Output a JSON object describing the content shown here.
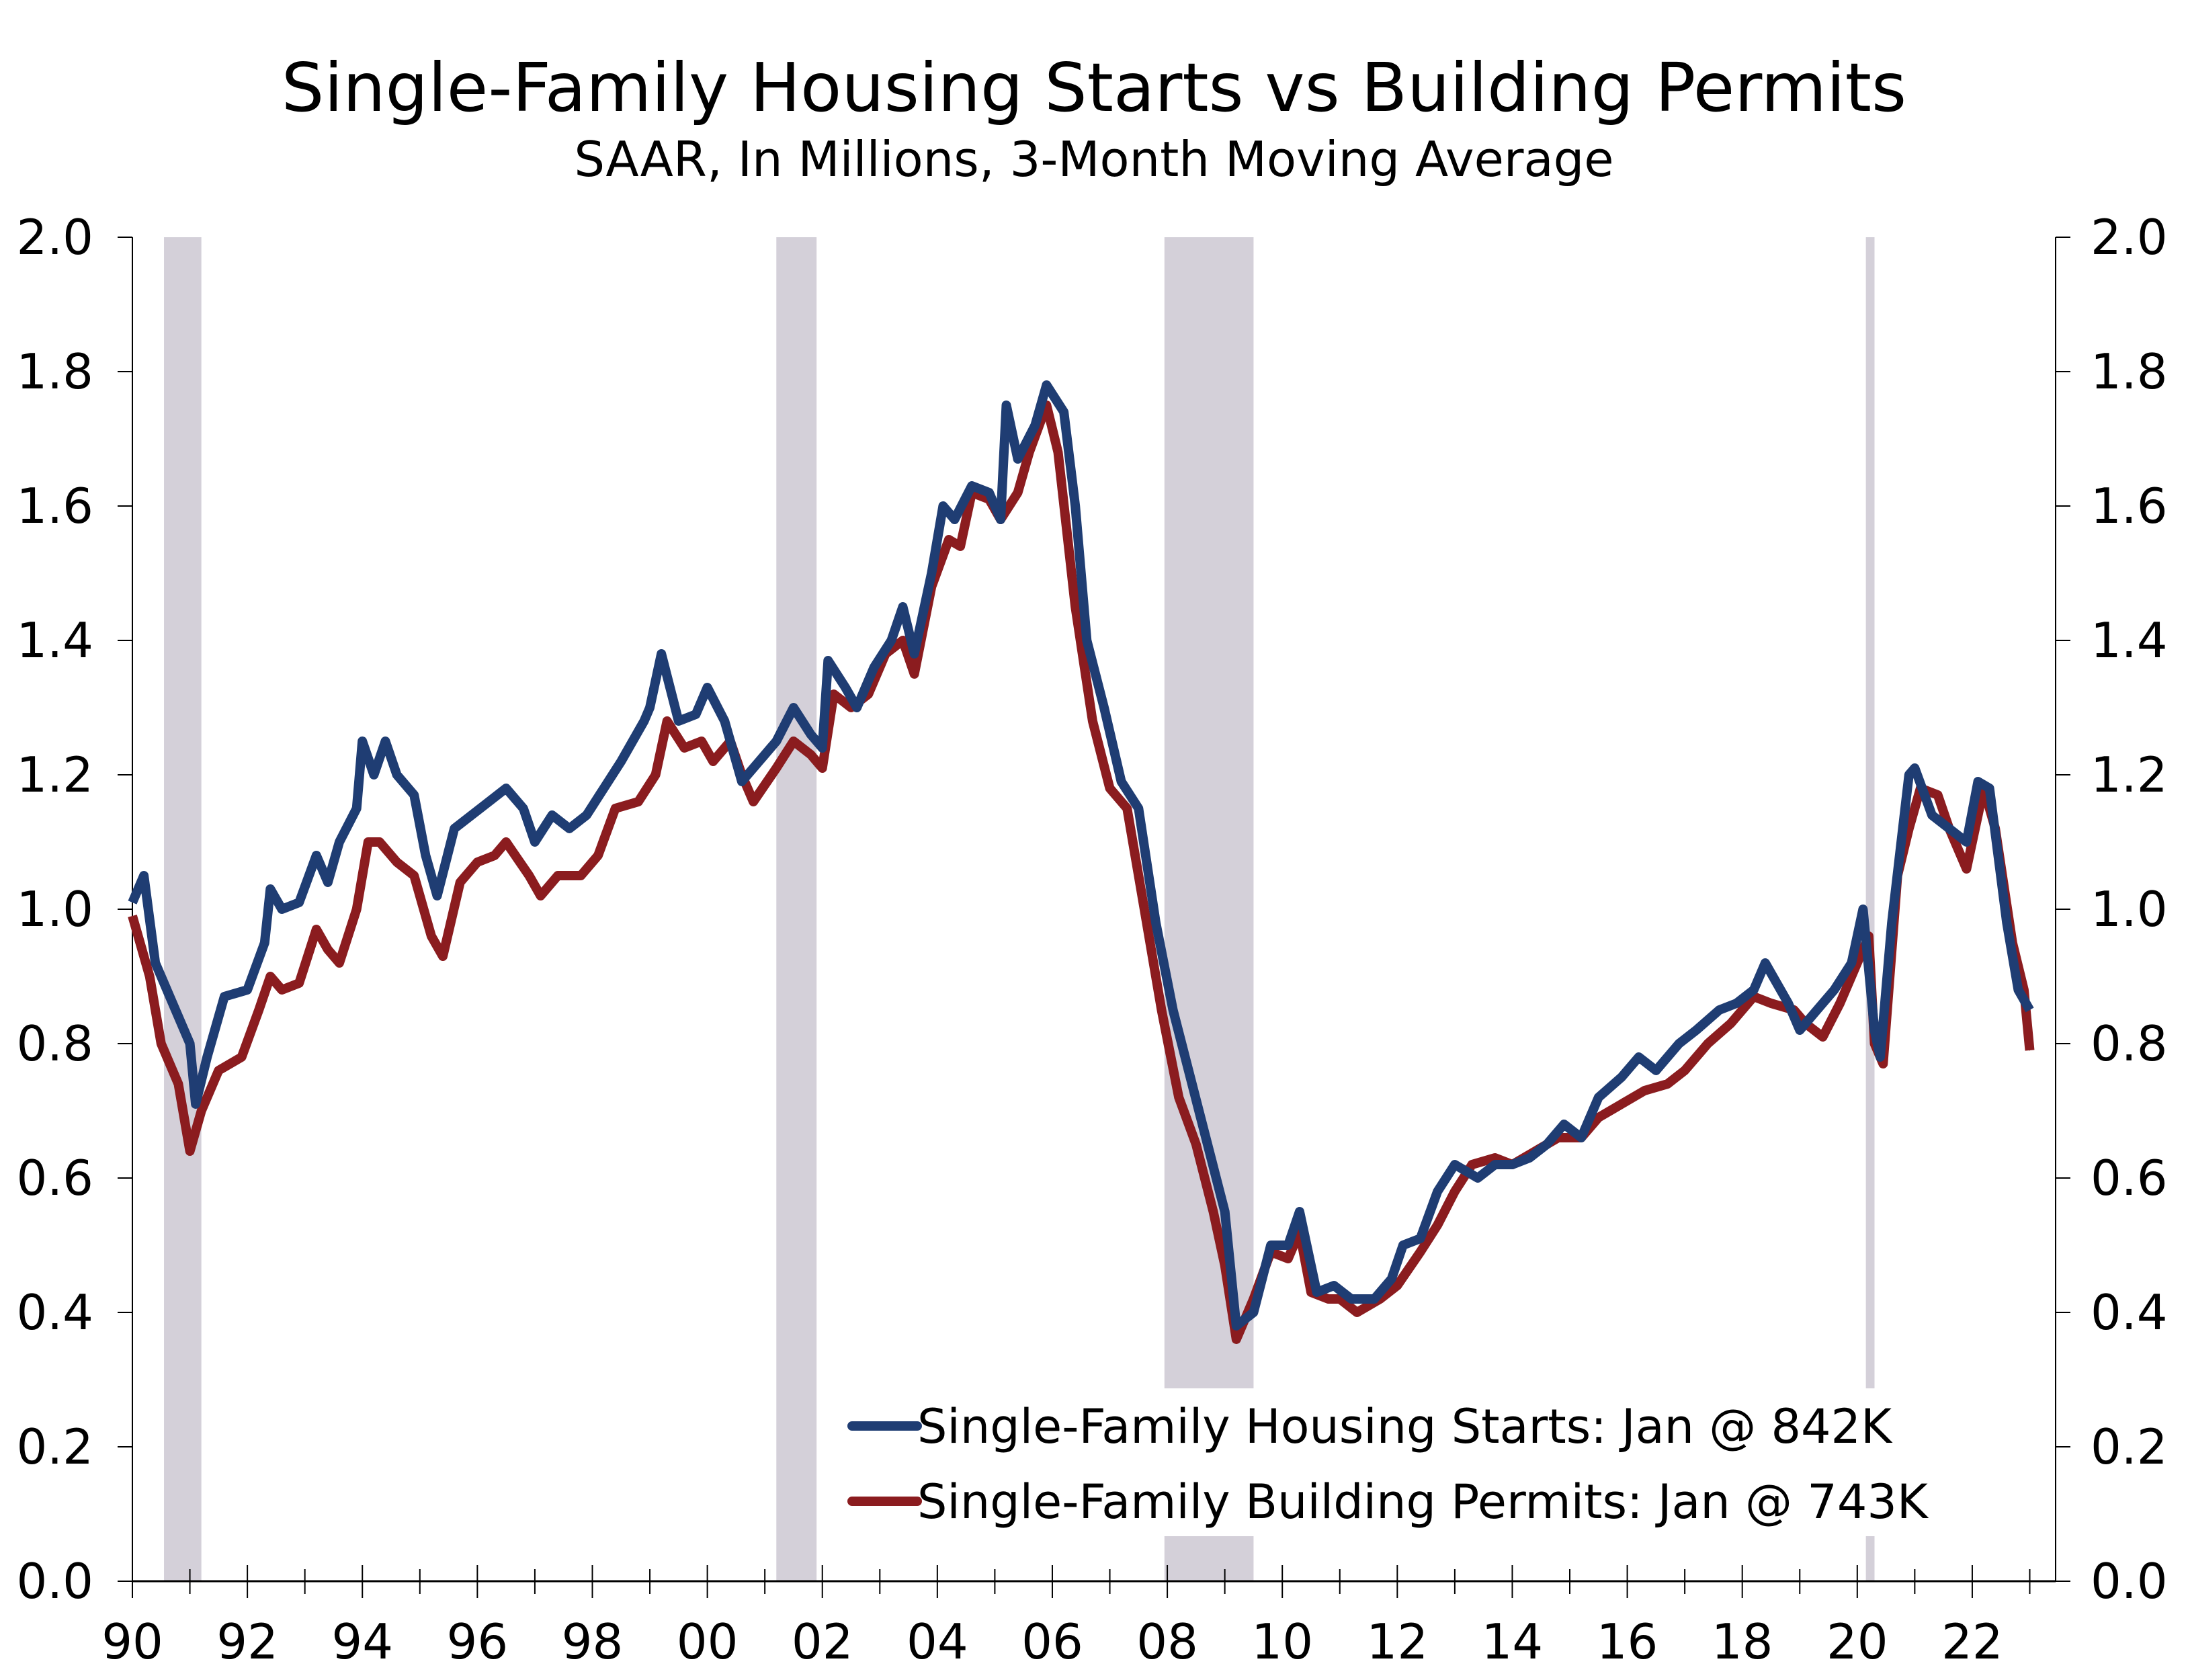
{
  "chart_data": {
    "type": "line",
    "title": "Single-Family Housing Starts vs Building Permits",
    "subtitle": "SAAR, In Millions, 3-Month Moving Average",
    "xlabel": "",
    "ylabel": "",
    "xlim": [
      1990,
      2023.45
    ],
    "ylim": [
      0,
      2.0
    ],
    "y_ticks": [
      "0.0",
      "0.2",
      "0.4",
      "0.6",
      "0.8",
      "1.0",
      "1.2",
      "1.4",
      "1.6",
      "1.8",
      "2.0"
    ],
    "x_ticks": [
      {
        "year": 1990,
        "label": "90"
      },
      {
        "year": 1992,
        "label": "92"
      },
      {
        "year": 1994,
        "label": "94"
      },
      {
        "year": 1996,
        "label": "96"
      },
      {
        "year": 1998,
        "label": "98"
      },
      {
        "year": 2000,
        "label": "00"
      },
      {
        "year": 2002,
        "label": "02"
      },
      {
        "year": 2004,
        "label": "04"
      },
      {
        "year": 2006,
        "label": "06"
      },
      {
        "year": 2008,
        "label": "08"
      },
      {
        "year": 2010,
        "label": "10"
      },
      {
        "year": 2012,
        "label": "12"
      },
      {
        "year": 2014,
        "label": "14"
      },
      {
        "year": 2016,
        "label": "16"
      },
      {
        "year": 2018,
        "label": "18"
      },
      {
        "year": 2020,
        "label": "20"
      },
      {
        "year": 2022,
        "label": "22"
      }
    ],
    "recessions": [
      [
        1990.55,
        1991.2
      ],
      [
        2001.2,
        2001.9
      ],
      [
        2007.95,
        2009.5
      ],
      [
        2020.15,
        2020.3
      ]
    ],
    "grid": false,
    "legend_position": "bottom-right",
    "series": [
      {
        "name": "Single-Family Housing Starts: Jan @ 842K",
        "color": "#1f3d73",
        "points": [
          [
            1990.0,
            1.01
          ],
          [
            1990.2,
            1.05
          ],
          [
            1990.4,
            0.92
          ],
          [
            1990.7,
            0.86
          ],
          [
            1991.0,
            0.8
          ],
          [
            1991.1,
            0.71
          ],
          [
            1991.3,
            0.78
          ],
          [
            1991.6,
            0.87
          ],
          [
            1992.0,
            0.88
          ],
          [
            1992.3,
            0.95
          ],
          [
            1992.4,
            1.03
          ],
          [
            1992.6,
            1.0
          ],
          [
            1992.9,
            1.01
          ],
          [
            1993.2,
            1.08
          ],
          [
            1993.4,
            1.04
          ],
          [
            1993.6,
            1.1
          ],
          [
            1993.9,
            1.15
          ],
          [
            1994.0,
            1.25
          ],
          [
            1994.2,
            1.2
          ],
          [
            1994.4,
            1.25
          ],
          [
            1994.6,
            1.2
          ],
          [
            1994.9,
            1.17
          ],
          [
            1995.1,
            1.08
          ],
          [
            1995.3,
            1.02
          ],
          [
            1995.6,
            1.12
          ],
          [
            1995.9,
            1.14
          ],
          [
            1996.2,
            1.16
          ],
          [
            1996.5,
            1.18
          ],
          [
            1996.8,
            1.15
          ],
          [
            1997.0,
            1.1
          ],
          [
            1997.3,
            1.14
          ],
          [
            1997.6,
            1.12
          ],
          [
            1997.9,
            1.14
          ],
          [
            1998.2,
            1.18
          ],
          [
            1998.5,
            1.22
          ],
          [
            1998.9,
            1.28
          ],
          [
            1999.0,
            1.3
          ],
          [
            1999.2,
            1.38
          ],
          [
            1999.5,
            1.28
          ],
          [
            1999.8,
            1.29
          ],
          [
            2000.0,
            1.33
          ],
          [
            2000.3,
            1.28
          ],
          [
            2000.6,
            1.19
          ],
          [
            2000.9,
            1.22
          ],
          [
            2001.2,
            1.25
          ],
          [
            2001.5,
            1.3
          ],
          [
            2001.8,
            1.26
          ],
          [
            2002.0,
            1.24
          ],
          [
            2002.1,
            1.37
          ],
          [
            2002.4,
            1.33
          ],
          [
            2002.6,
            1.3
          ],
          [
            2002.9,
            1.36
          ],
          [
            2003.2,
            1.4
          ],
          [
            2003.4,
            1.45
          ],
          [
            2003.6,
            1.38
          ],
          [
            2003.9,
            1.5
          ],
          [
            2004.1,
            1.6
          ],
          [
            2004.3,
            1.58
          ],
          [
            2004.6,
            1.63
          ],
          [
            2004.9,
            1.62
          ],
          [
            2005.1,
            1.58
          ],
          [
            2005.2,
            1.75
          ],
          [
            2005.4,
            1.67
          ],
          [
            2005.7,
            1.72
          ],
          [
            2005.9,
            1.78
          ],
          [
            2006.2,
            1.74
          ],
          [
            2006.4,
            1.6
          ],
          [
            2006.6,
            1.4
          ],
          [
            2006.9,
            1.3
          ],
          [
            2007.2,
            1.19
          ],
          [
            2007.5,
            1.15
          ],
          [
            2007.8,
            0.98
          ],
          [
            2008.1,
            0.85
          ],
          [
            2008.4,
            0.75
          ],
          [
            2008.7,
            0.65
          ],
          [
            2009.0,
            0.55
          ],
          [
            2009.2,
            0.38
          ],
          [
            2009.5,
            0.4
          ],
          [
            2009.8,
            0.5
          ],
          [
            2010.1,
            0.5
          ],
          [
            2010.3,
            0.55
          ],
          [
            2010.6,
            0.43
          ],
          [
            2010.9,
            0.44
          ],
          [
            2011.2,
            0.42
          ],
          [
            2011.6,
            0.42
          ],
          [
            2011.9,
            0.45
          ],
          [
            2012.1,
            0.5
          ],
          [
            2012.4,
            0.51
          ],
          [
            2012.7,
            0.58
          ],
          [
            2013.0,
            0.62
          ],
          [
            2013.4,
            0.6
          ],
          [
            2013.7,
            0.62
          ],
          [
            2014.0,
            0.62
          ],
          [
            2014.3,
            0.63
          ],
          [
            2014.6,
            0.65
          ],
          [
            2014.9,
            0.68
          ],
          [
            2015.2,
            0.66
          ],
          [
            2015.5,
            0.72
          ],
          [
            2015.9,
            0.75
          ],
          [
            2016.2,
            0.78
          ],
          [
            2016.5,
            0.76
          ],
          [
            2016.9,
            0.8
          ],
          [
            2017.2,
            0.82
          ],
          [
            2017.6,
            0.85
          ],
          [
            2017.9,
            0.86
          ],
          [
            2018.2,
            0.88
          ],
          [
            2018.4,
            0.92
          ],
          [
            2018.8,
            0.86
          ],
          [
            2019.0,
            0.82
          ],
          [
            2019.3,
            0.85
          ],
          [
            2019.6,
            0.88
          ],
          [
            2019.9,
            0.92
          ],
          [
            2020.1,
            1.0
          ],
          [
            2020.3,
            0.82
          ],
          [
            2020.4,
            0.78
          ],
          [
            2020.6,
            0.98
          ],
          [
            2020.9,
            1.2
          ],
          [
            2021.0,
            1.21
          ],
          [
            2021.3,
            1.14
          ],
          [
            2021.6,
            1.12
          ],
          [
            2021.9,
            1.1
          ],
          [
            2022.1,
            1.19
          ],
          [
            2022.3,
            1.18
          ],
          [
            2022.6,
            0.98
          ],
          [
            2022.8,
            0.88
          ],
          [
            2023.0,
            0.85
          ]
        ]
      },
      {
        "name": "Single-Family Building Permits: Jan @ 743K",
        "color": "#8b1c1f",
        "points": [
          [
            1990.0,
            0.99
          ],
          [
            1990.3,
            0.9
          ],
          [
            1990.5,
            0.8
          ],
          [
            1990.8,
            0.74
          ],
          [
            1991.0,
            0.64
          ],
          [
            1991.2,
            0.7
          ],
          [
            1991.5,
            0.76
          ],
          [
            1991.9,
            0.78
          ],
          [
            1992.2,
            0.85
          ],
          [
            1992.4,
            0.9
          ],
          [
            1992.6,
            0.88
          ],
          [
            1992.9,
            0.89
          ],
          [
            1993.2,
            0.97
          ],
          [
            1993.4,
            0.94
          ],
          [
            1993.6,
            0.92
          ],
          [
            1993.9,
            1.0
          ],
          [
            1994.1,
            1.1
          ],
          [
            1994.3,
            1.1
          ],
          [
            1994.6,
            1.07
          ],
          [
            1994.9,
            1.05
          ],
          [
            1995.2,
            0.96
          ],
          [
            1995.4,
            0.93
          ],
          [
            1995.7,
            1.04
          ],
          [
            1996.0,
            1.07
          ],
          [
            1996.3,
            1.08
          ],
          [
            1996.5,
            1.1
          ],
          [
            1996.9,
            1.05
          ],
          [
            1997.1,
            1.02
          ],
          [
            1997.4,
            1.05
          ],
          [
            1997.8,
            1.05
          ],
          [
            1998.1,
            1.08
          ],
          [
            1998.4,
            1.15
          ],
          [
            1998.8,
            1.16
          ],
          [
            1999.1,
            1.2
          ],
          [
            1999.3,
            1.28
          ],
          [
            1999.6,
            1.24
          ],
          [
            1999.9,
            1.25
          ],
          [
            2000.1,
            1.22
          ],
          [
            2000.4,
            1.25
          ],
          [
            2000.6,
            1.2
          ],
          [
            2000.8,
            1.16
          ],
          [
            2001.2,
            1.21
          ],
          [
            2001.5,
            1.25
          ],
          [
            2001.8,
            1.23
          ],
          [
            2002.0,
            1.21
          ],
          [
            2002.2,
            1.32
          ],
          [
            2002.5,
            1.3
          ],
          [
            2002.8,
            1.32
          ],
          [
            2003.1,
            1.38
          ],
          [
            2003.4,
            1.4
          ],
          [
            2003.6,
            1.35
          ],
          [
            2003.9,
            1.48
          ],
          [
            2004.2,
            1.55
          ],
          [
            2004.4,
            1.54
          ],
          [
            2004.6,
            1.62
          ],
          [
            2004.9,
            1.61
          ],
          [
            2005.1,
            1.58
          ],
          [
            2005.4,
            1.62
          ],
          [
            2005.6,
            1.68
          ],
          [
            2005.9,
            1.75
          ],
          [
            2006.1,
            1.68
          ],
          [
            2006.4,
            1.45
          ],
          [
            2006.7,
            1.28
          ],
          [
            2007.0,
            1.18
          ],
          [
            2007.3,
            1.15
          ],
          [
            2007.6,
            1.0
          ],
          [
            2007.9,
            0.85
          ],
          [
            2008.2,
            0.72
          ],
          [
            2008.5,
            0.65
          ],
          [
            2008.8,
            0.55
          ],
          [
            2009.0,
            0.47
          ],
          [
            2009.2,
            0.36
          ],
          [
            2009.5,
            0.42
          ],
          [
            2009.8,
            0.49
          ],
          [
            2010.1,
            0.48
          ],
          [
            2010.3,
            0.52
          ],
          [
            2010.5,
            0.43
          ],
          [
            2010.8,
            0.42
          ],
          [
            2011.0,
            0.42
          ],
          [
            2011.3,
            0.4
          ],
          [
            2011.7,
            0.42
          ],
          [
            2012.0,
            0.44
          ],
          [
            2012.4,
            0.49
          ],
          [
            2012.7,
            0.53
          ],
          [
            2013.0,
            0.58
          ],
          [
            2013.3,
            0.62
          ],
          [
            2013.7,
            0.63
          ],
          [
            2014.0,
            0.62
          ],
          [
            2014.4,
            0.64
          ],
          [
            2014.8,
            0.66
          ],
          [
            2015.2,
            0.66
          ],
          [
            2015.5,
            0.69
          ],
          [
            2015.9,
            0.71
          ],
          [
            2016.3,
            0.73
          ],
          [
            2016.7,
            0.74
          ],
          [
            2017.0,
            0.76
          ],
          [
            2017.4,
            0.8
          ],
          [
            2017.8,
            0.83
          ],
          [
            2018.2,
            0.87
          ],
          [
            2018.5,
            0.86
          ],
          [
            2018.9,
            0.85
          ],
          [
            2019.1,
            0.83
          ],
          [
            2019.4,
            0.81
          ],
          [
            2019.7,
            0.86
          ],
          [
            2020.0,
            0.92
          ],
          [
            2020.2,
            0.96
          ],
          [
            2020.3,
            0.8
          ],
          [
            2020.45,
            0.77
          ],
          [
            2020.7,
            1.05
          ],
          [
            2020.9,
            1.12
          ],
          [
            2021.1,
            1.18
          ],
          [
            2021.4,
            1.17
          ],
          [
            2021.6,
            1.12
          ],
          [
            2021.9,
            1.06
          ],
          [
            2022.2,
            1.18
          ],
          [
            2022.4,
            1.12
          ],
          [
            2022.7,
            0.95
          ],
          [
            2022.9,
            0.88
          ],
          [
            2023.0,
            0.79
          ]
        ]
      }
    ],
    "recession_color": "#d4d0d9"
  }
}
